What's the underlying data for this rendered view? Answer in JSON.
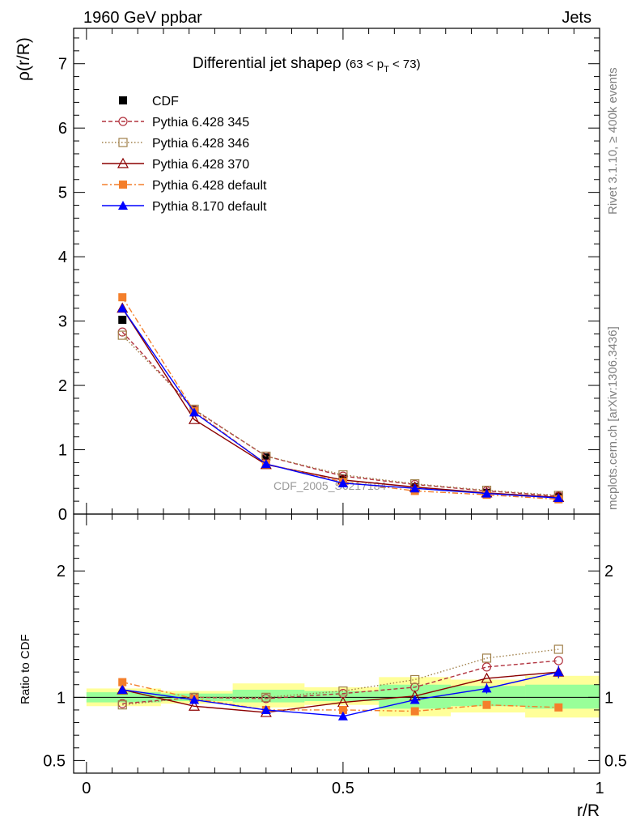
{
  "header": {
    "left": "1960 GeV ppbar",
    "right": "Jets"
  },
  "side_labels": {
    "rivet": "Rivet 3.1.10, ≥ 400k events",
    "mcplots": "mcplots.cern.ch [arXiv:1306.3436]"
  },
  "watermark": "CDF_2005_S6217184",
  "colors": {
    "cdf": "#000000",
    "p345": "#b2333f",
    "p346": "#a0804a",
    "p370": "#8b0000",
    "p6def": "#f47f2b",
    "p8def": "#0000ff",
    "band_yellow": "#ffff99",
    "band_green": "#99ff99"
  },
  "chart_data": [
    {
      "type": "line",
      "title_main": "Differential jet shapeρ",
      "title_sub_prefix": "(63 < p",
      "title_sub_T": "T",
      "title_sub_suffix": " < 73)",
      "ylabel": "ρ(r/R)",
      "xlim": [
        -0.025,
        1.0
      ],
      "ylim": [
        0,
        7.55
      ],
      "yticks": [
        0,
        1,
        2,
        3,
        4,
        5,
        6,
        7
      ],
      "ytick_labels": [
        "0",
        "1",
        "2",
        "3",
        "4",
        "5",
        "6",
        "7"
      ],
      "x": [
        0.07,
        0.21,
        0.35,
        0.5,
        0.64,
        0.78,
        0.92
      ],
      "series": [
        {
          "name": "CDF",
          "marker": "square-filled",
          "line": "none",
          "values": [
            3.02,
            1.61,
            0.88,
            0.55,
            0.42,
            0.33,
            0.27
          ]
        },
        {
          "name": "Pythia 6.428 345",
          "marker": "circle-open",
          "line": "dashed",
          "values": [
            2.83,
            1.62,
            0.9,
            0.59,
            0.46,
            0.36,
            0.28
          ]
        },
        {
          "name": "Pythia 6.428 346",
          "marker": "square-open",
          "line": "dotted",
          "values": [
            2.78,
            1.63,
            0.9,
            0.61,
            0.47,
            0.37,
            0.29
          ]
        },
        {
          "name": "Pythia 6.428 370",
          "marker": "triangle-open",
          "line": "solid",
          "values": [
            3.2,
            1.47,
            0.77,
            0.53,
            0.42,
            0.33,
            0.26
          ]
        },
        {
          "name": "Pythia 6.428 default",
          "marker": "square-filled",
          "line": "dashdot",
          "values": [
            3.37,
            1.6,
            0.78,
            0.5,
            0.36,
            0.3,
            0.23
          ]
        },
        {
          "name": "Pythia 8.170 default",
          "marker": "triangle-filled",
          "line": "solid",
          "values": [
            3.2,
            1.58,
            0.78,
            0.48,
            0.4,
            0.32,
            0.25
          ]
        }
      ]
    },
    {
      "type": "line",
      "ylabel": "Ratio to CDF",
      "xlabel": "r/R",
      "xlim": [
        -0.025,
        1.0
      ],
      "ylim": [
        0.4,
        2.45
      ],
      "yticks": [
        0.5,
        1,
        2
      ],
      "ytick_labels": [
        "0.5",
        "1",
        "2"
      ],
      "xticks": [
        0,
        0.5,
        1
      ],
      "xtick_labels": [
        "0",
        "0.5",
        "1"
      ],
      "x": [
        0.07,
        0.21,
        0.35,
        0.5,
        0.64,
        0.78,
        0.92
      ],
      "band_edges": [
        0.0,
        0.145,
        0.285,
        0.425,
        0.57,
        0.71,
        0.855,
        1.0
      ],
      "band_yellow": [
        [
          0.93,
          1.07
        ],
        [
          0.95,
          1.05
        ],
        [
          0.92,
          1.11
        ],
        [
          0.94,
          1.08
        ],
        [
          0.85,
          1.16
        ],
        [
          0.88,
          1.14
        ],
        [
          0.84,
          1.17
        ]
      ],
      "band_green": [
        [
          0.96,
          1.04
        ],
        [
          0.97,
          1.03
        ],
        [
          0.96,
          1.06
        ],
        [
          0.97,
          1.05
        ],
        [
          0.91,
          1.1
        ],
        [
          0.93,
          1.09
        ],
        [
          0.91,
          1.1
        ]
      ],
      "series": [
        {
          "name": "Pythia 6.428 345",
          "values": [
            0.95,
            1.0,
            0.99,
            1.03,
            1.08,
            1.24,
            1.29
          ]
        },
        {
          "name": "Pythia 6.428 346",
          "values": [
            0.94,
            1.0,
            1.0,
            1.05,
            1.14,
            1.31,
            1.38
          ]
        },
        {
          "name": "Pythia 6.428 370",
          "values": [
            1.06,
            0.93,
            0.88,
            0.96,
            1.01,
            1.15,
            1.2
          ]
        },
        {
          "name": "Pythia 6.428 default",
          "values": [
            1.12,
            0.99,
            0.9,
            0.9,
            0.89,
            0.94,
            0.92
          ]
        },
        {
          "name": "Pythia 8.170 default",
          "values": [
            1.06,
            0.98,
            0.9,
            0.85,
            0.98,
            1.07,
            1.2
          ]
        }
      ],
      "error_bars": {
        "Pythia 8.170 default": [
          0.02,
          0.02,
          0.03,
          0.03,
          0.03,
          0.04,
          0.05
        ]
      }
    }
  ]
}
